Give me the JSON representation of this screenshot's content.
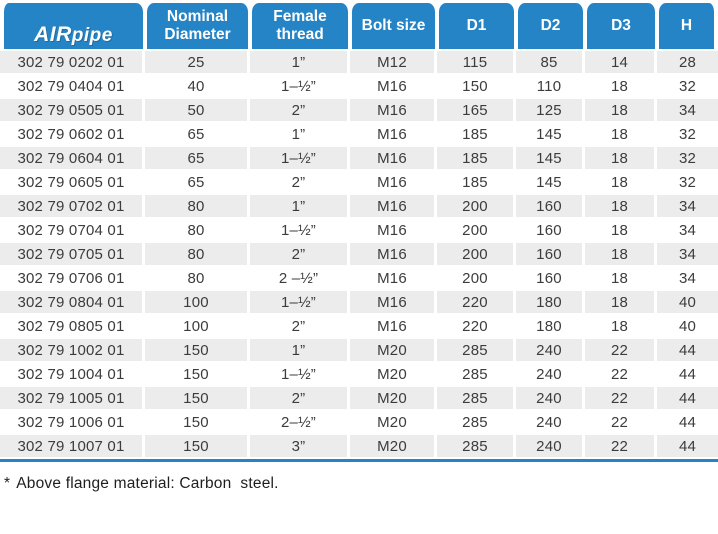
{
  "logo": {
    "air": "AIR",
    "pipe": "pipe"
  },
  "colors": {
    "header_blue": "#2484c5",
    "row_gray": "#ececec",
    "header_text": "#ffffff",
    "body_text": "#3c3c3c"
  },
  "table": {
    "headers": [
      "Nominal\nDiameter",
      "Female\nthread",
      "Bolt size",
      "D1",
      "D2",
      "D3",
      "H"
    ],
    "rows": [
      [
        "302 79 0202 01",
        "25",
        "1”",
        "M12",
        "115",
        "85",
        "14",
        "28"
      ],
      [
        "302 79 0404 01",
        "40",
        "1–½”",
        "M16",
        "150",
        "110",
        "18",
        "32"
      ],
      [
        "302 79 0505 01",
        "50",
        "2”",
        "M16",
        "165",
        "125",
        "18",
        "34"
      ],
      [
        "302 79 0602 01",
        "65",
        "1”",
        "M16",
        "185",
        "145",
        "18",
        "32"
      ],
      [
        "302 79 0604 01",
        "65",
        "1–½”",
        "M16",
        "185",
        "145",
        "18",
        "32"
      ],
      [
        "302 79 0605 01",
        "65",
        "2”",
        "M16",
        "185",
        "145",
        "18",
        "32"
      ],
      [
        "302 79 0702 01",
        "80",
        "1”",
        "M16",
        "200",
        "160",
        "18",
        "34"
      ],
      [
        "302 79 0704 01",
        "80",
        "1–½”",
        "M16",
        "200",
        "160",
        "18",
        "34"
      ],
      [
        "302 79 0705 01",
        "80",
        "2”",
        "M16",
        "200",
        "160",
        "18",
        "34"
      ],
      [
        "302 79 0706 01",
        "80",
        "2 –½”",
        "M16",
        "200",
        "160",
        "18",
        "34"
      ],
      [
        "302 79 0804 01",
        "100",
        "1–½”",
        "M16",
        "220",
        "180",
        "18",
        "40"
      ],
      [
        "302 79 0805 01",
        "100",
        "2”",
        "M16",
        "220",
        "180",
        "18",
        "40"
      ],
      [
        "302 79 1002 01",
        "150",
        "1”",
        "M20",
        "285",
        "240",
        "22",
        "44"
      ],
      [
        "302 79 1004 01",
        "150",
        "1–½”",
        "M20",
        "285",
        "240",
        "22",
        "44"
      ],
      [
        "302 79 1005 01",
        "150",
        "2”",
        "M20",
        "285",
        "240",
        "22",
        "44"
      ],
      [
        "302 79 1006 01",
        "150",
        "2–½”",
        "M20",
        "285",
        "240",
        "22",
        "44"
      ],
      [
        "302 79 1007 01",
        "150",
        "3”",
        "M20",
        "285",
        "240",
        "22",
        "44"
      ]
    ]
  },
  "footnote": {
    "marker": "*",
    "text": "Above flange material: Carbon  steel."
  }
}
